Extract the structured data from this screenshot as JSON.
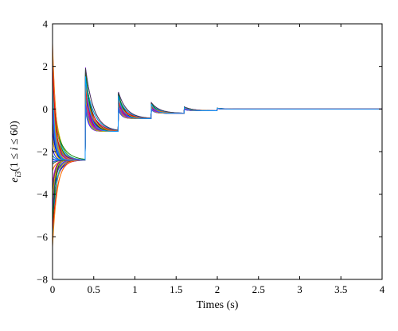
{
  "chart_data": {
    "type": "line",
    "title": "",
    "xlabel": "Times (s)",
    "ylabel": "e_{i3} (1 ≤ i ≤ 60)",
    "ylabel_parts": {
      "var": "e",
      "sub": "i3",
      "range": "(1 ≤ ",
      "idx": "i",
      "rest": " ≤ 60)"
    },
    "xlim": [
      0,
      4
    ],
    "ylim": [
      -8,
      4
    ],
    "xticks": [
      0,
      0.5,
      1,
      1.5,
      2,
      2.5,
      3,
      3.5,
      4
    ],
    "yticks": [
      -8,
      -6,
      -4,
      -2,
      0,
      2,
      4
    ],
    "xtick_labels": [
      "0",
      "0.5",
      "1",
      "1.5",
      "2",
      "2.5",
      "3",
      "3.5",
      "4"
    ],
    "ytick_labels": [
      "−8",
      "−6",
      "−4",
      "−2",
      "0",
      "2",
      "4"
    ],
    "grid": false,
    "legend": "none",
    "num_series": 60,
    "steady_levels": [
      {
        "from": 0.0,
        "to": 0.4,
        "value": -2.4
      },
      {
        "from": 0.4,
        "to": 0.8,
        "value": -1.05
      },
      {
        "from": 0.8,
        "to": 1.2,
        "value": -0.45
      },
      {
        "from": 1.2,
        "to": 1.6,
        "value": -0.2
      },
      {
        "from": 1.6,
        "to": 2.0,
        "value": -0.08
      },
      {
        "from": 2.0,
        "to": 4.0,
        "value": 0.0
      }
    ],
    "initial_value_range": [
      -6.6,
      3.2
    ],
    "spike_peaks": [
      {
        "x": 0.4,
        "max": 1.95
      },
      {
        "x": 0.8,
        "max": 0.8
      },
      {
        "x": 1.2,
        "max": 0.3
      },
      {
        "x": 1.6,
        "max": 0.1
      },
      {
        "x": 2.0,
        "max": 0.04
      }
    ],
    "series_colors": [
      "#0000ff",
      "#008000",
      "#ff0000",
      "#00bfbf",
      "#bf00bf",
      "#bfbf00",
      "#404040",
      "#ff8000",
      "#8000ff",
      "#00a0ff"
    ]
  }
}
